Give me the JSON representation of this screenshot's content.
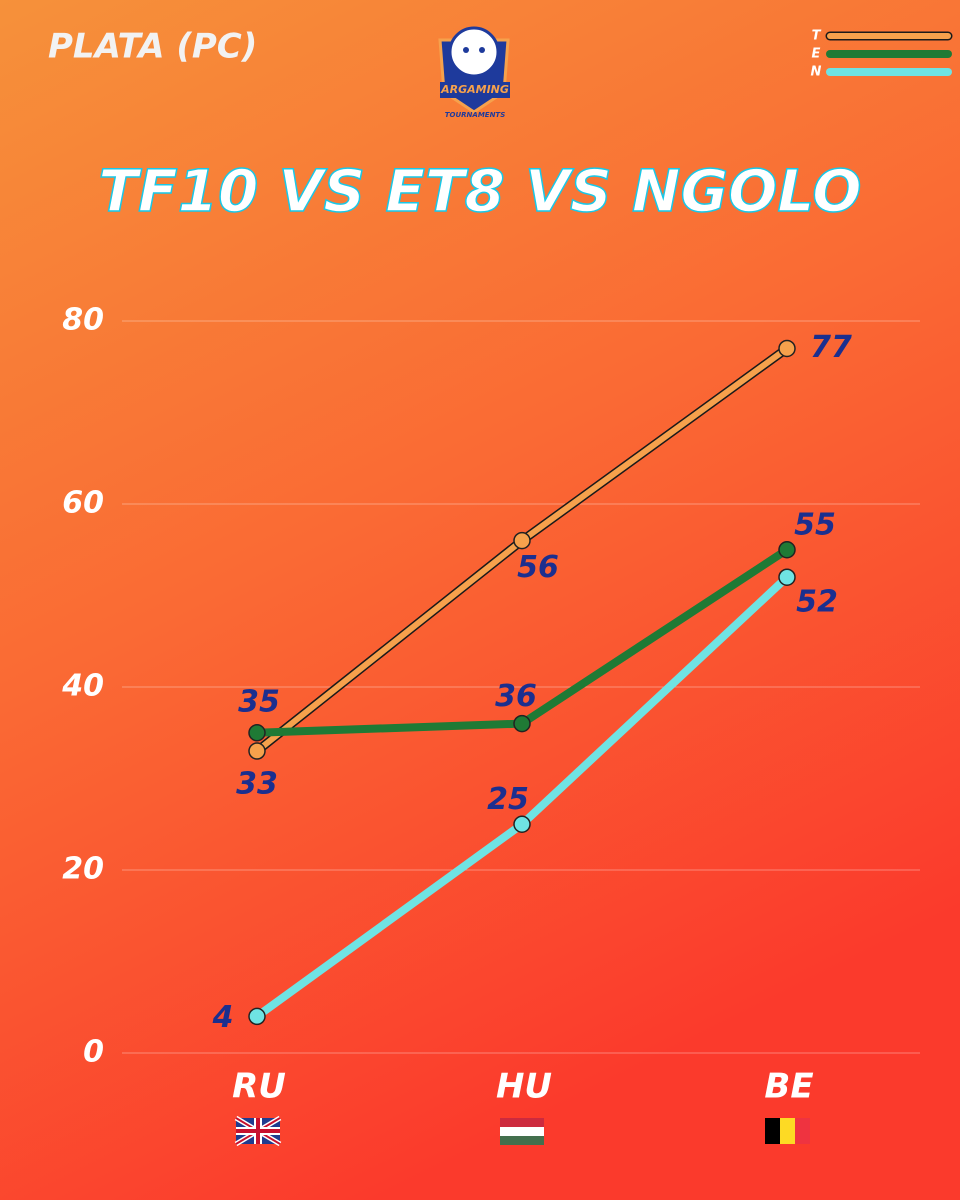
{
  "header": {
    "label": "PLATA (PC)",
    "logo": {
      "name": "ARGAMING",
      "subtitle": "TOURNAMENTS"
    }
  },
  "chart_data": {
    "type": "line",
    "title": "TF10 VS ET8 VS NGOLO",
    "categories": [
      "RU",
      "HU",
      "BE"
    ],
    "series": [
      {
        "name": "T",
        "color": "#f6a14c",
        "outline": "#1a1a1a",
        "values": [
          33,
          56,
          77
        ]
      },
      {
        "name": "E",
        "color": "#1f7a35",
        "values": [
          35,
          36,
          55
        ]
      },
      {
        "name": "N",
        "color": "#6fe3e3",
        "values": [
          4,
          25,
          52
        ]
      }
    ],
    "ylim": [
      0,
      80
    ],
    "yticks": [
      0,
      20,
      40,
      60,
      80
    ],
    "grid": true,
    "legend": "top-right",
    "label_color": "#1b2f8f"
  }
}
